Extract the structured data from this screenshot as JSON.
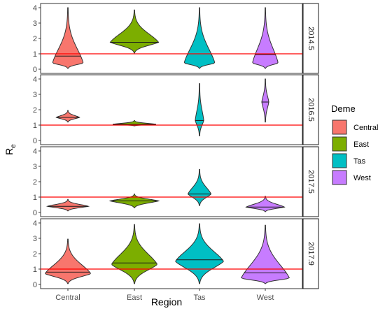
{
  "chart_data": {
    "type": "violin",
    "xlabel": "Region",
    "ylabel_main": "R",
    "ylabel_sub": "e",
    "categories": [
      "Central",
      "East",
      "Tas",
      "West"
    ],
    "facets": [
      "2014.5",
      "2016.5",
      "2017.5",
      "2017.9"
    ],
    "ylim": [
      0,
      4
    ],
    "yticks": [
      "0",
      "1",
      "2",
      "3",
      "4"
    ],
    "reference_line": 1,
    "reference_line_color": "#ff0000",
    "legend": {
      "title": "Deme",
      "placement": "right",
      "entries": [
        {
          "name": "Central",
          "color": "#f8766d"
        },
        {
          "name": "East",
          "color": "#7cae00"
        },
        {
          "name": "Tas",
          "color": "#00bfc4"
        },
        {
          "name": "West",
          "color": "#c77cff"
        }
      ]
    },
    "violins": [
      {
        "facet": "2014.5",
        "category": "Central",
        "min": 0.05,
        "max": 4.0,
        "median": 0.85,
        "mode": 0.4,
        "max_density": 0.6
      },
      {
        "facet": "2014.5",
        "category": "East",
        "min": 1.05,
        "max": 3.85,
        "median": 1.75,
        "mode": 1.75,
        "max_density": 0.95
      },
      {
        "facet": "2014.5",
        "category": "Tas",
        "min": 0.05,
        "max": 4.0,
        "median": 1.0,
        "mode": 0.4,
        "max_density": 0.6
      },
      {
        "facet": "2014.5",
        "category": "West",
        "min": 0.05,
        "max": 4.0,
        "median": 0.95,
        "mode": 0.4,
        "max_density": 0.5
      },
      {
        "facet": "2016.5",
        "category": "Central",
        "min": 1.2,
        "max": 1.95,
        "median": 1.5,
        "mode": 1.5,
        "max_density": 0.45
      },
      {
        "facet": "2016.5",
        "category": "East",
        "min": 0.95,
        "max": 1.3,
        "median": 1.05,
        "mode": 1.05,
        "max_density": 0.85
      },
      {
        "facet": "2016.5",
        "category": "Tas",
        "min": 0.3,
        "max": 3.7,
        "median": 1.3,
        "mode": 1.3,
        "max_density": 0.16
      },
      {
        "facet": "2016.5",
        "category": "West",
        "min": 1.2,
        "max": 4.0,
        "median": 2.5,
        "mode": 2.5,
        "max_density": 0.13
      },
      {
        "facet": "2017.5",
        "category": "Central",
        "min": 0.1,
        "max": 0.85,
        "median": 0.4,
        "mode": 0.4,
        "max_density": 0.8
      },
      {
        "facet": "2017.5",
        "category": "East",
        "min": 0.3,
        "max": 1.2,
        "median": 0.75,
        "mode": 0.75,
        "max_density": 0.95
      },
      {
        "facet": "2017.5",
        "category": "Tas",
        "min": 0.45,
        "max": 2.8,
        "median": 1.2,
        "mode": 1.2,
        "max_density": 0.45
      },
      {
        "facet": "2017.5",
        "category": "West",
        "min": 0.05,
        "max": 1.05,
        "median": 0.35,
        "mode": 0.35,
        "max_density": 0.75
      },
      {
        "facet": "2017.9",
        "category": "Central",
        "min": 0.05,
        "max": 2.95,
        "median": 0.8,
        "mode": 0.7,
        "max_density": 0.9
      },
      {
        "facet": "2017.9",
        "category": "East",
        "min": 0.05,
        "max": 3.9,
        "median": 1.4,
        "mode": 1.3,
        "max_density": 0.9
      },
      {
        "facet": "2017.9",
        "category": "Tas",
        "min": 0.05,
        "max": 3.95,
        "median": 1.6,
        "mode": 1.5,
        "max_density": 0.95
      },
      {
        "facet": "2017.9",
        "category": "West",
        "min": 0.05,
        "max": 3.85,
        "median": 0.75,
        "mode": 0.4,
        "max_density": 0.95
      }
    ]
  }
}
